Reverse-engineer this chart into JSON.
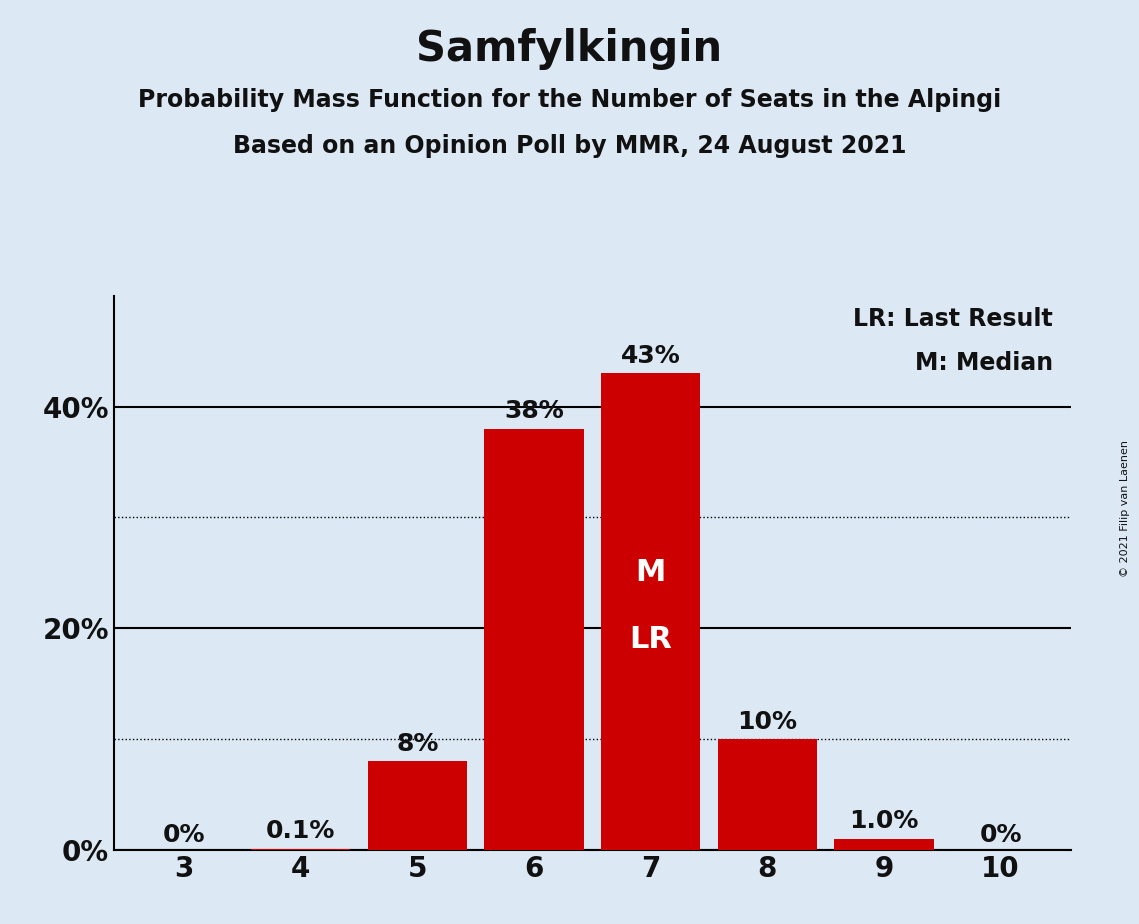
{
  "title": "Samfylkingin",
  "subtitle1": "Probability Mass Function for the Number of Seats in the Alpingi",
  "subtitle2": "Based on an Opinion Poll by MMR, 24 August 2021",
  "copyright": "© 2021 Filip van Laenen",
  "seats": [
    3,
    4,
    5,
    6,
    7,
    8,
    9,
    10
  ],
  "probabilities": [
    0.0,
    0.1,
    8.0,
    38.0,
    43.0,
    10.0,
    1.0,
    0.0
  ],
  "bar_labels": [
    "0%",
    "0.1%",
    "8%",
    "38%",
    "43%",
    "10%",
    "1.0%",
    "0%"
  ],
  "bar_color": "#CC0000",
  "background_color": "#DCE9F5",
  "text_color": "#111111",
  "ylabel_ticks": [
    0,
    20,
    40
  ],
  "ylabel_labels": [
    "0%",
    "20%",
    "40%"
  ],
  "dotted_lines": [
    10,
    30
  ],
  "ylim": [
    0,
    50
  ],
  "median_seat": 7,
  "last_result_seat": 7,
  "legend_line1": "LR: Last Result",
  "legend_line2": "M: Median",
  "title_fontsize": 30,
  "subtitle_fontsize": 17,
  "axis_tick_fontsize": 20,
  "bar_label_fontsize": 18,
  "legend_fontsize": 17,
  "inside_label_fontsize": 22,
  "copyright_fontsize": 8
}
